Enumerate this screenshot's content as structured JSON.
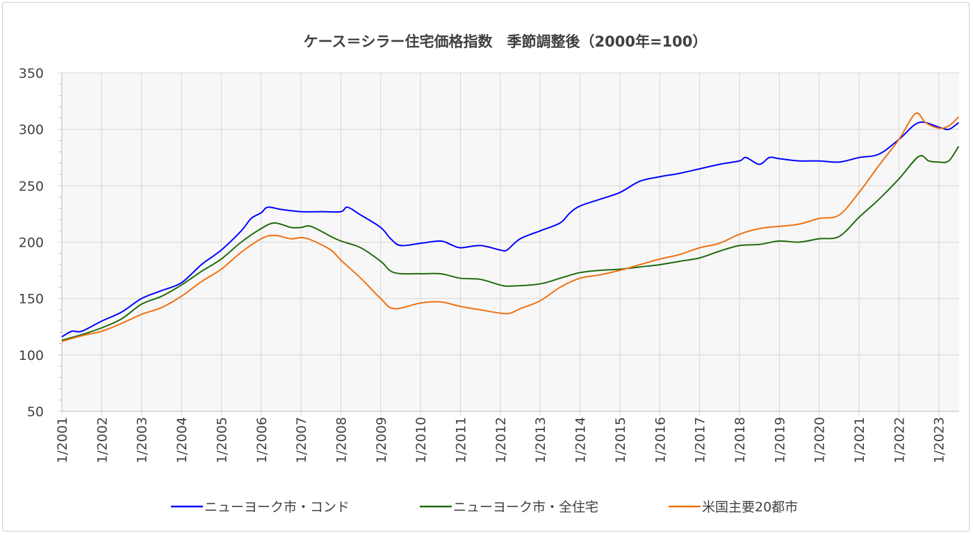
{
  "chart_data": {
    "type": "line",
    "title": "ケース＝シラー住宅価格指数　季節調整後（2000年=100）",
    "xlabel": "",
    "ylabel": "",
    "ylim": [
      50,
      350
    ],
    "yticks": [
      50,
      100,
      150,
      200,
      250,
      300,
      350
    ],
    "xticks": [
      "1/2001",
      "1/2002",
      "1/2003",
      "1/2004",
      "1/2005",
      "1/2006",
      "1/2007",
      "1/2008",
      "1/2009",
      "1/2010",
      "1/2011",
      "1/2012",
      "1/2013",
      "1/2014",
      "1/2015",
      "1/2016",
      "1/2017",
      "1/2018",
      "1/2019",
      "1/2020",
      "1/2021",
      "1/2022",
      "1/2023"
    ],
    "grid": true,
    "legend": "bottom",
    "series": [
      {
        "name": "ニューヨーク市・コンド",
        "color": "#0000ff",
        "points": [
          [
            "2001-01",
            116
          ],
          [
            "2001-04",
            121
          ],
          [
            "2001-07",
            121
          ],
          [
            "2002-01",
            130
          ],
          [
            "2002-07",
            138
          ],
          [
            "2003-01",
            150
          ],
          [
            "2003-07",
            157
          ],
          [
            "2004-01",
            164
          ],
          [
            "2004-07",
            180
          ],
          [
            "2005-01",
            193
          ],
          [
            "2005-07",
            210
          ],
          [
            "2005-10",
            221
          ],
          [
            "2006-01",
            226
          ],
          [
            "2006-03",
            231
          ],
          [
            "2006-07",
            229
          ],
          [
            "2007-01",
            227
          ],
          [
            "2007-07",
            227
          ],
          [
            "2008-01",
            227
          ],
          [
            "2008-03",
            231
          ],
          [
            "2008-07",
            224
          ],
          [
            "2009-01",
            213
          ],
          [
            "2009-04",
            203
          ],
          [
            "2009-07",
            197
          ],
          [
            "2010-01",
            199
          ],
          [
            "2010-07",
            201
          ],
          [
            "2010-10",
            198
          ],
          [
            "2011-01",
            195
          ],
          [
            "2011-07",
            197
          ],
          [
            "2012-01",
            193
          ],
          [
            "2012-03",
            193
          ],
          [
            "2012-07",
            203
          ],
          [
            "2013-01",
            210
          ],
          [
            "2013-07",
            217
          ],
          [
            "2013-10",
            226
          ],
          [
            "2014-01",
            232
          ],
          [
            "2014-07",
            238
          ],
          [
            "2015-01",
            244
          ],
          [
            "2015-07",
            254
          ],
          [
            "2016-01",
            258
          ],
          [
            "2016-07",
            261
          ],
          [
            "2017-01",
            265
          ],
          [
            "2017-07",
            269
          ],
          [
            "2018-01",
            272
          ],
          [
            "2018-03",
            275
          ],
          [
            "2018-07",
            269
          ],
          [
            "2018-10",
            275
          ],
          [
            "2019-01",
            274
          ],
          [
            "2019-07",
            272
          ],
          [
            "2020-01",
            272
          ],
          [
            "2020-07",
            271
          ],
          [
            "2021-01",
            275
          ],
          [
            "2021-07",
            278
          ],
          [
            "2022-01",
            291
          ],
          [
            "2022-07",
            306
          ],
          [
            "2023-01",
            302
          ],
          [
            "2023-04",
            300
          ],
          [
            "2023-07",
            306
          ]
        ]
      },
      {
        "name": "ニューヨーク市・全住宅",
        "color": "#1e6b0c",
        "points": [
          [
            "2001-01",
            113
          ],
          [
            "2001-07",
            118
          ],
          [
            "2002-01",
            124
          ],
          [
            "2002-07",
            132
          ],
          [
            "2003-01",
            145
          ],
          [
            "2003-07",
            152
          ],
          [
            "2004-01",
            162
          ],
          [
            "2004-07",
            174
          ],
          [
            "2005-01",
            185
          ],
          [
            "2005-07",
            200
          ],
          [
            "2006-01",
            212
          ],
          [
            "2006-05",
            217
          ],
          [
            "2006-10",
            213
          ],
          [
            "2007-01",
            213
          ],
          [
            "2007-04",
            214
          ],
          [
            "2007-10",
            205
          ],
          [
            "2008-01",
            201
          ],
          [
            "2008-07",
            195
          ],
          [
            "2009-01",
            183
          ],
          [
            "2009-05",
            173
          ],
          [
            "2010-01",
            172
          ],
          [
            "2010-07",
            172
          ],
          [
            "2011-01",
            168
          ],
          [
            "2011-07",
            167
          ],
          [
            "2012-01",
            162
          ],
          [
            "2012-04",
            161
          ],
          [
            "2013-01",
            163
          ],
          [
            "2013-07",
            168
          ],
          [
            "2014-01",
            173
          ],
          [
            "2014-07",
            175
          ],
          [
            "2015-01",
            176
          ],
          [
            "2015-07",
            178
          ],
          [
            "2016-01",
            180
          ],
          [
            "2016-07",
            183
          ],
          [
            "2017-01",
            186
          ],
          [
            "2017-07",
            192
          ],
          [
            "2018-01",
            197
          ],
          [
            "2018-07",
            198
          ],
          [
            "2019-01",
            201
          ],
          [
            "2019-07",
            200
          ],
          [
            "2020-01",
            203
          ],
          [
            "2020-07",
            205
          ],
          [
            "2021-01",
            222
          ],
          [
            "2021-07",
            238
          ],
          [
            "2022-01",
            256
          ],
          [
            "2022-07",
            276
          ],
          [
            "2022-10",
            272
          ],
          [
            "2023-01",
            271
          ],
          [
            "2023-04",
            272
          ],
          [
            "2023-07",
            285
          ]
        ]
      },
      {
        "name": "米国主要20都市",
        "color": "#f07010",
        "points": [
          [
            "2001-01",
            112
          ],
          [
            "2001-07",
            117
          ],
          [
            "2002-01",
            121
          ],
          [
            "2002-07",
            128
          ],
          [
            "2003-01",
            136
          ],
          [
            "2003-07",
            142
          ],
          [
            "2004-01",
            152
          ],
          [
            "2004-07",
            165
          ],
          [
            "2005-01",
            176
          ],
          [
            "2005-07",
            191
          ],
          [
            "2006-01",
            203
          ],
          [
            "2006-05",
            206
          ],
          [
            "2006-10",
            203
          ],
          [
            "2007-01",
            204
          ],
          [
            "2007-04",
            202
          ],
          [
            "2007-10",
            193
          ],
          [
            "2008-01",
            184
          ],
          [
            "2008-07",
            168
          ],
          [
            "2009-01",
            150
          ],
          [
            "2009-05",
            141
          ],
          [
            "2010-01",
            146
          ],
          [
            "2010-07",
            147
          ],
          [
            "2011-01",
            143
          ],
          [
            "2011-07",
            140
          ],
          [
            "2012-01",
            137
          ],
          [
            "2012-04",
            137
          ],
          [
            "2012-07",
            141
          ],
          [
            "2013-01",
            148
          ],
          [
            "2013-07",
            160
          ],
          [
            "2014-01",
            168
          ],
          [
            "2014-07",
            171
          ],
          [
            "2015-01",
            175
          ],
          [
            "2015-07",
            180
          ],
          [
            "2016-01",
            185
          ],
          [
            "2016-07",
            189
          ],
          [
            "2017-01",
            195
          ],
          [
            "2017-07",
            199
          ],
          [
            "2018-01",
            207
          ],
          [
            "2018-07",
            212
          ],
          [
            "2019-01",
            214
          ],
          [
            "2019-07",
            216
          ],
          [
            "2020-01",
            221
          ],
          [
            "2020-07",
            224
          ],
          [
            "2021-01",
            244
          ],
          [
            "2021-07",
            268
          ],
          [
            "2022-01",
            291
          ],
          [
            "2022-06",
            314
          ],
          [
            "2022-09",
            306
          ],
          [
            "2023-01",
            301
          ],
          [
            "2023-04",
            303
          ],
          [
            "2023-07",
            311
          ]
        ]
      }
    ]
  }
}
